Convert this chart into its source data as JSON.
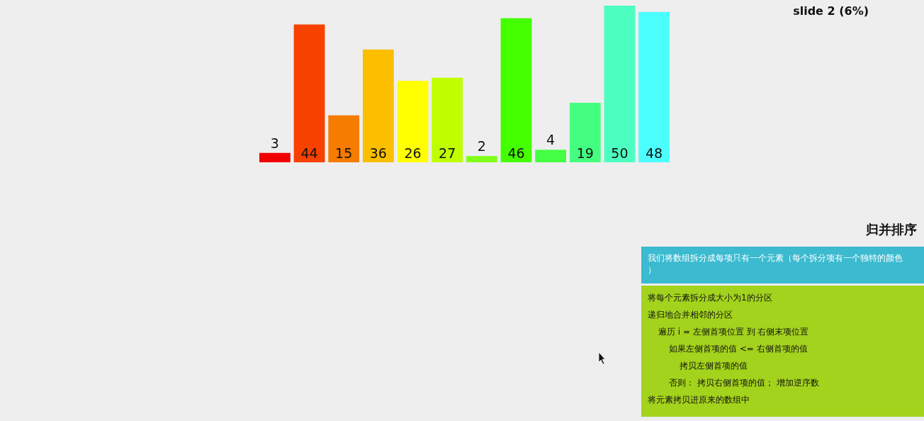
{
  "chart_data": {
    "type": "bar",
    "title": "归并排序",
    "categories": [
      null,
      null,
      null,
      null,
      null,
      null,
      null,
      null,
      null,
      null,
      null,
      null
    ],
    "values": [
      3,
      44,
      15,
      36,
      26,
      27,
      2,
      46,
      4,
      19,
      50,
      48
    ],
    "colors": [
      "#f00000",
      "#f74100",
      "#f57c00",
      "#fbbf00",
      "#ffff00",
      "#bfff00",
      "#7fff1a",
      "#44ff00",
      "#44ff44",
      "#44ff7f",
      "#4cffc0",
      "#4cffff"
    ],
    "data_labels": true,
    "annotations": [
      "slide 2 (6%)",
      "我们将数组拆分成每项只有一个元素（每个拆分项有一个独特的颜色）",
      "将每个元素拆分成大小为1的分区",
      "递归地合并相邻的分区",
      "遍历 i = 左侧首项位置 到 右侧末项位置",
      "如果左侧首项的值 <= 右侧首项的值",
      "拷贝左侧首项的值",
      "否则： 拷贝右侧首项的值； 增加逆序数",
      "将元素拷贝进原来的数组中"
    ]
  }
}
